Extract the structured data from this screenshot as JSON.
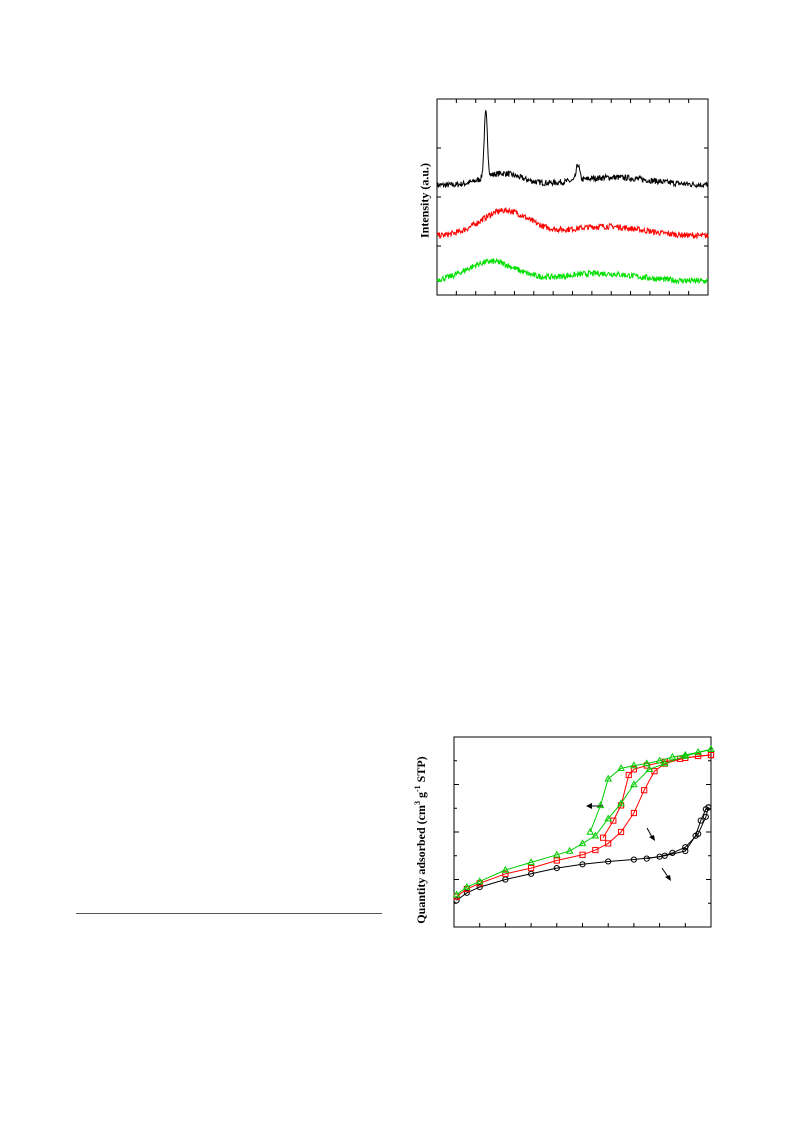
{
  "chart_data": [
    {
      "type": "line",
      "ylabel": "Intensity (a.u.)",
      "xlim": [
        0,
        1
      ],
      "ylim": [
        0,
        1
      ],
      "grid": false,
      "series": [
        {
          "color": "#000000",
          "baseline": 0.56,
          "broad_peaks": [
            [
              0.24,
              0.07,
              0.06
            ],
            [
              0.65,
              0.14,
              0.04
            ]
          ],
          "sharp_peaks": [
            [
              0.18,
              0.006,
              0.33
            ],
            [
              0.52,
              0.006,
              0.08
            ]
          ]
        },
        {
          "color": "#ff0000",
          "baseline": 0.3,
          "broad_peaks": [
            [
              0.25,
              0.09,
              0.13
            ],
            [
              0.62,
              0.14,
              0.05
            ]
          ],
          "sharp_peaks": []
        },
        {
          "color": "#00e000",
          "baseline": 0.07,
          "broad_peaks": [
            [
              0.2,
              0.09,
              0.1
            ],
            [
              0.6,
              0.14,
              0.04
            ]
          ],
          "sharp_peaks": []
        }
      ]
    },
    {
      "type": "line",
      "ylabel": "Quantity adsorbed (cm3 g-1 STP)",
      "xlim": [
        0,
        1
      ],
      "ylim": [
        0,
        1
      ],
      "grid": false,
      "series": [
        {
          "marker": "circle",
          "color": "#000000",
          "adsorption": [
            [
              0.01,
              0.14
            ],
            [
              0.05,
              0.18
            ],
            [
              0.1,
              0.21
            ],
            [
              0.2,
              0.25
            ],
            [
              0.3,
              0.28
            ],
            [
              0.4,
              0.31
            ],
            [
              0.5,
              0.33
            ],
            [
              0.6,
              0.345
            ],
            [
              0.7,
              0.355
            ],
            [
              0.8,
              0.37
            ],
            [
              0.85,
              0.39
            ],
            [
              0.9,
              0.42
            ],
            [
              0.95,
              0.49
            ],
            [
              0.98,
              0.58
            ],
            [
              0.99,
              0.63
            ]
          ],
          "desorption": [
            [
              0.99,
              0.63
            ],
            [
              0.98,
              0.62
            ],
            [
              0.96,
              0.56
            ],
            [
              0.94,
              0.48
            ],
            [
              0.9,
              0.4
            ],
            [
              0.82,
              0.375
            ],
            [
              0.75,
              0.36
            ]
          ]
        },
        {
          "marker": "square",
          "color": "#ff0000",
          "adsorption": [
            [
              0.01,
              0.16
            ],
            [
              0.05,
              0.2
            ],
            [
              0.1,
              0.23
            ],
            [
              0.2,
              0.28
            ],
            [
              0.3,
              0.31
            ],
            [
              0.4,
              0.35
            ],
            [
              0.5,
              0.38
            ],
            [
              0.55,
              0.405
            ],
            [
              0.6,
              0.44
            ],
            [
              0.65,
              0.5
            ],
            [
              0.7,
              0.6
            ],
            [
              0.74,
              0.72
            ],
            [
              0.78,
              0.82
            ],
            [
              0.82,
              0.86
            ],
            [
              0.9,
              0.89
            ],
            [
              1.0,
              0.905
            ]
          ],
          "desorption": [
            [
              1.0,
              0.905
            ],
            [
              0.95,
              0.9
            ],
            [
              0.88,
              0.885
            ],
            [
              0.82,
              0.87
            ],
            [
              0.75,
              0.85
            ],
            [
              0.7,
              0.83
            ],
            [
              0.68,
              0.8
            ],
            [
              0.65,
              0.64
            ],
            [
              0.62,
              0.56
            ],
            [
              0.58,
              0.47
            ]
          ]
        },
        {
          "marker": "triangle",
          "color": "#00cc00",
          "adsorption": [
            [
              0.01,
              0.17
            ],
            [
              0.05,
              0.21
            ],
            [
              0.1,
              0.24
            ],
            [
              0.2,
              0.3
            ],
            [
              0.3,
              0.34
            ],
            [
              0.4,
              0.38
            ],
            [
              0.45,
              0.4
            ],
            [
              0.5,
              0.44
            ],
            [
              0.55,
              0.48
            ],
            [
              0.6,
              0.57
            ],
            [
              0.65,
              0.65
            ],
            [
              0.7,
              0.75
            ],
            [
              0.76,
              0.83
            ],
            [
              0.82,
              0.86
            ],
            [
              0.9,
              0.9
            ],
            [
              1.0,
              0.935
            ]
          ],
          "desorption": [
            [
              1.0,
              0.935
            ],
            [
              0.95,
              0.92
            ],
            [
              0.9,
              0.905
            ],
            [
              0.85,
              0.895
            ],
            [
              0.8,
              0.875
            ],
            [
              0.75,
              0.86
            ],
            [
              0.7,
              0.85
            ],
            [
              0.65,
              0.835
            ],
            [
              0.6,
              0.78
            ],
            [
              0.57,
              0.64
            ],
            [
              0.53,
              0.5
            ]
          ]
        }
      ]
    }
  ]
}
